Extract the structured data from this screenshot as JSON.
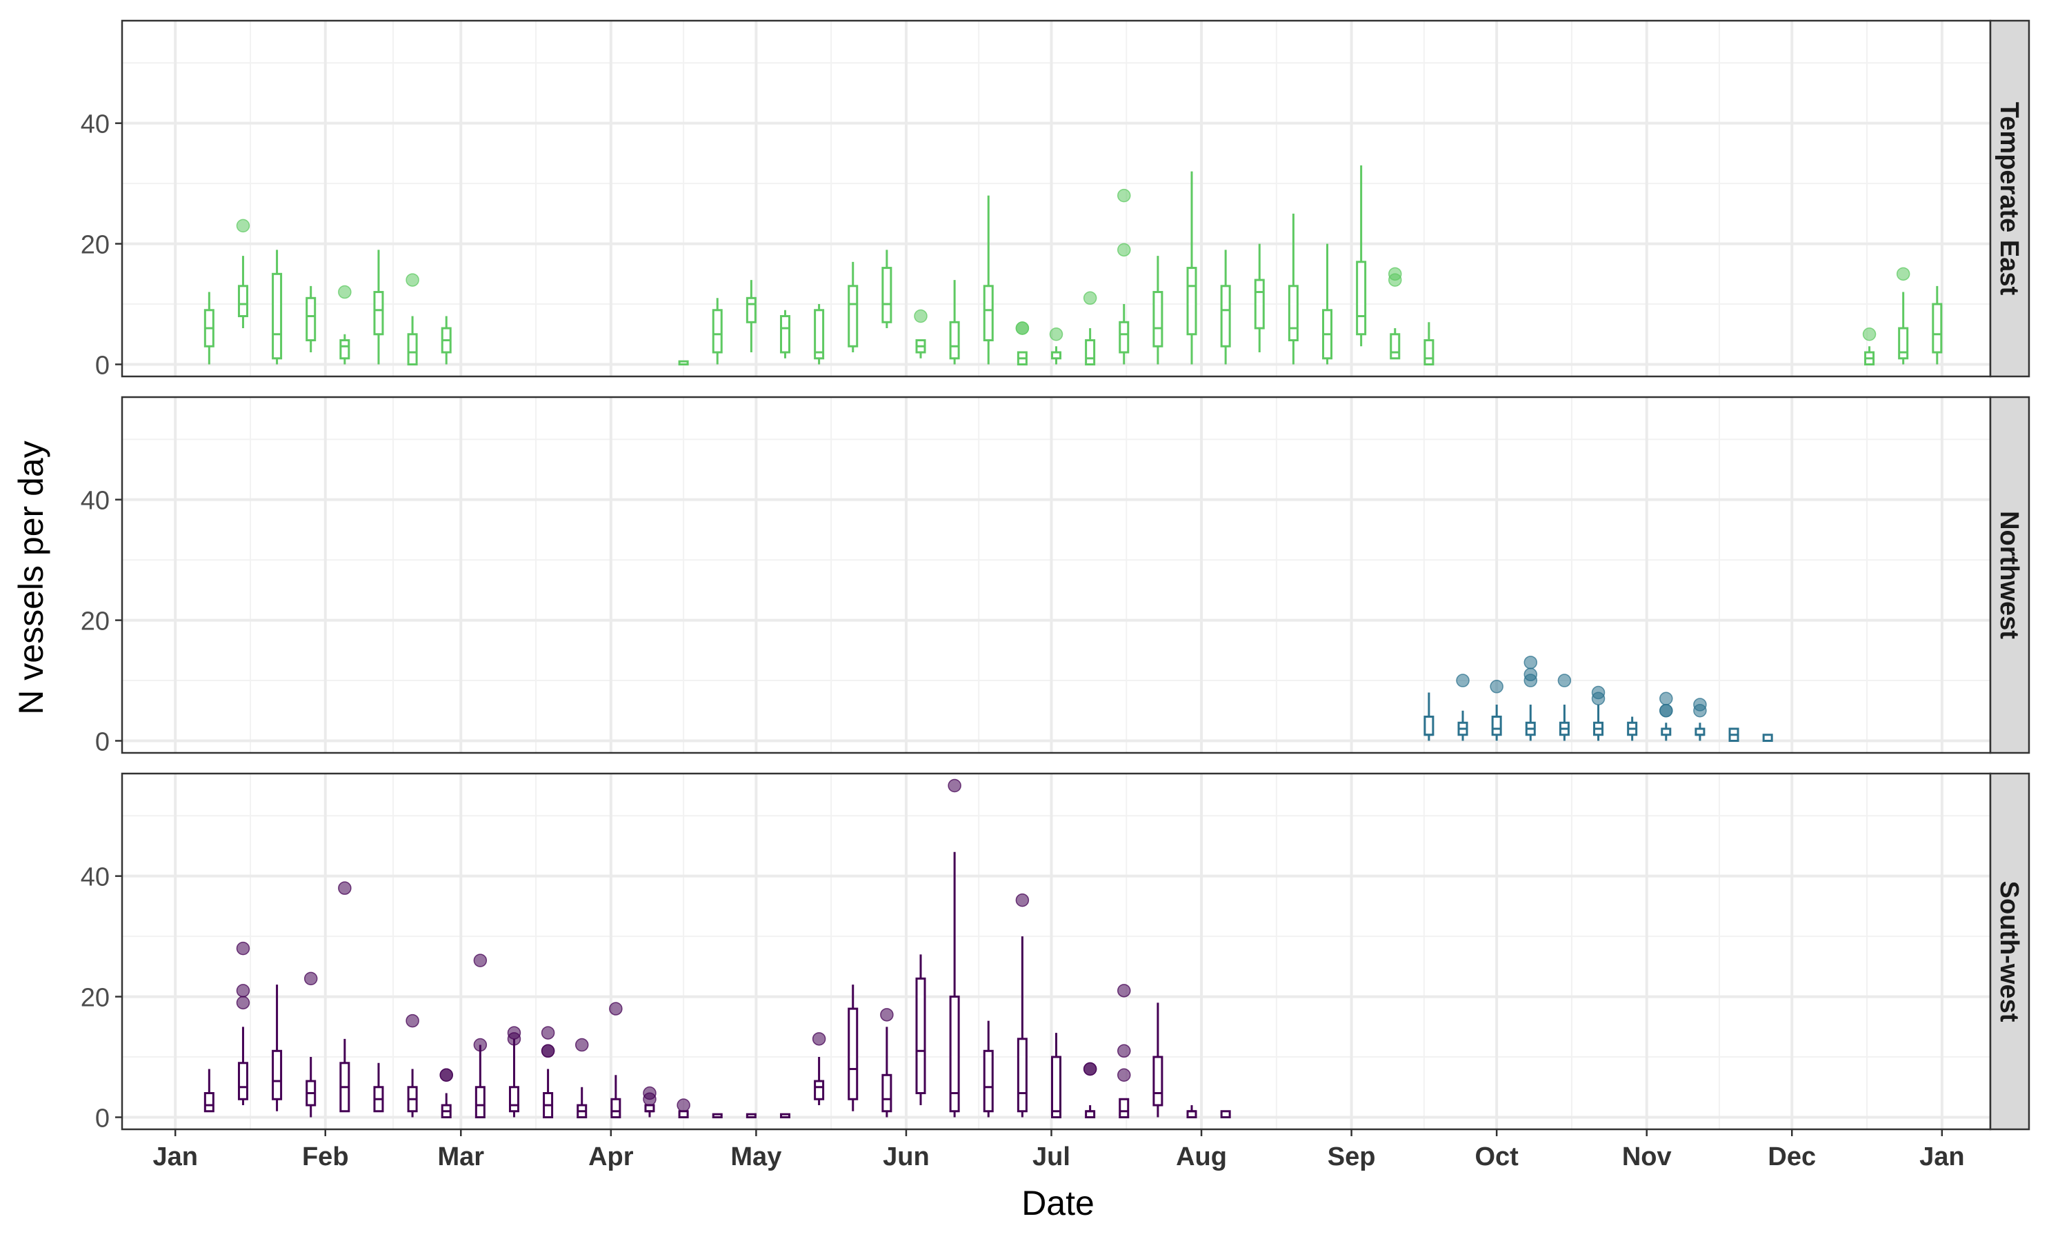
{
  "chart_data": {
    "type": "box",
    "xlabel": "Date",
    "ylabel": "N vessels per day",
    "x_tick_labels": [
      "Jan",
      "Feb",
      "Mar",
      "Apr",
      "May",
      "Jun",
      "Jul",
      "Aug",
      "Sep",
      "Oct",
      "Nov",
      "Dec",
      "Jan"
    ],
    "x_tick_dates": [
      "2023-01-01",
      "2023-02-01",
      "2023-03-01",
      "2023-04-01",
      "2023-05-01",
      "2023-06-01",
      "2023-07-01",
      "2023-08-01",
      "2023-09-01",
      "2023-10-01",
      "2023-11-01",
      "2023-12-01",
      "2024-01-01"
    ],
    "xlim": [
      "2022-12-21",
      "2024-01-11"
    ],
    "ylim": [
      -2,
      57
    ],
    "y_ticks": [
      0,
      20,
      40
    ],
    "grid": true,
    "panels": [
      {
        "name": "Temperate East",
        "color": "#5ec962",
        "boxes": [
          {
            "x": "2023-01-08",
            "min": 0,
            "q1": 3,
            "median": 6,
            "q3": 9,
            "max": 12,
            "outliers": []
          },
          {
            "x": "2023-01-15",
            "min": 6,
            "q1": 8,
            "median": 10,
            "q3": 13,
            "max": 18,
            "outliers": [
              23
            ]
          },
          {
            "x": "2023-01-22",
            "min": 0,
            "q1": 1,
            "median": 5,
            "q3": 15,
            "max": 19,
            "outliers": []
          },
          {
            "x": "2023-01-29",
            "min": 2,
            "q1": 4,
            "median": 8,
            "q3": 11,
            "max": 13,
            "outliers": []
          },
          {
            "x": "2023-02-05",
            "min": 0,
            "q1": 1,
            "median": 3,
            "q3": 4,
            "max": 5,
            "outliers": [
              12
            ]
          },
          {
            "x": "2023-02-12",
            "min": 0,
            "q1": 5,
            "median": 9,
            "q3": 12,
            "max": 19,
            "outliers": []
          },
          {
            "x": "2023-02-19",
            "min": 0,
            "q1": 0,
            "median": 2,
            "q3": 5,
            "max": 8,
            "outliers": [
              14
            ]
          },
          {
            "x": "2023-02-26",
            "min": 0,
            "q1": 2,
            "median": 4,
            "q3": 6,
            "max": 8,
            "outliers": []
          },
          {
            "x": "2023-04-16",
            "min": 0,
            "q1": 0,
            "median": 0,
            "q3": 0.5,
            "max": 0.5,
            "outliers": []
          },
          {
            "x": "2023-04-23",
            "min": 0,
            "q1": 2,
            "median": 5,
            "q3": 9,
            "max": 11,
            "outliers": []
          },
          {
            "x": "2023-04-30",
            "min": 2,
            "q1": 7,
            "median": 10,
            "q3": 11,
            "max": 14,
            "outliers": []
          },
          {
            "x": "2023-05-07",
            "min": 1,
            "q1": 2,
            "median": 6,
            "q3": 8,
            "max": 9,
            "outliers": []
          },
          {
            "x": "2023-05-14",
            "min": 0,
            "q1": 1,
            "median": 2,
            "q3": 9,
            "max": 10,
            "outliers": []
          },
          {
            "x": "2023-05-21",
            "min": 2,
            "q1": 3,
            "median": 10,
            "q3": 13,
            "max": 17,
            "outliers": []
          },
          {
            "x": "2023-05-28",
            "min": 6,
            "q1": 7,
            "median": 10,
            "q3": 16,
            "max": 19,
            "outliers": []
          },
          {
            "x": "2023-06-04",
            "min": 1,
            "q1": 2,
            "median": 3,
            "q3": 4,
            "max": 4,
            "outliers": [
              8
            ]
          },
          {
            "x": "2023-06-11",
            "min": 0,
            "q1": 1,
            "median": 3,
            "q3": 7,
            "max": 14,
            "outliers": []
          },
          {
            "x": "2023-06-18",
            "min": 0,
            "q1": 4,
            "median": 9,
            "q3": 13,
            "max": 28,
            "outliers": []
          },
          {
            "x": "2023-06-25",
            "min": 0,
            "q1": 0,
            "median": 1,
            "q3": 2,
            "max": 2,
            "outliers": [
              6,
              6
            ]
          },
          {
            "x": "2023-07-02",
            "min": 0,
            "q1": 1,
            "median": 2,
            "q3": 2,
            "max": 3,
            "outliers": [
              5
            ]
          },
          {
            "x": "2023-07-09",
            "min": 0,
            "q1": 0,
            "median": 1,
            "q3": 4,
            "max": 6,
            "outliers": [
              11
            ]
          },
          {
            "x": "2023-07-16",
            "min": 0,
            "q1": 2,
            "median": 5,
            "q3": 7,
            "max": 10,
            "outliers": [
              19,
              28
            ]
          },
          {
            "x": "2023-07-23",
            "min": 0,
            "q1": 3,
            "median": 6,
            "q3": 12,
            "max": 18,
            "outliers": []
          },
          {
            "x": "2023-07-30",
            "min": 0,
            "q1": 5,
            "median": 13,
            "q3": 16,
            "max": 32,
            "outliers": []
          },
          {
            "x": "2023-08-06",
            "min": 0,
            "q1": 3,
            "median": 9,
            "q3": 13,
            "max": 19,
            "outliers": []
          },
          {
            "x": "2023-08-13",
            "min": 2,
            "q1": 6,
            "median": 12,
            "q3": 14,
            "max": 20,
            "outliers": []
          },
          {
            "x": "2023-08-20",
            "min": 0,
            "q1": 4,
            "median": 6,
            "q3": 13,
            "max": 25,
            "outliers": []
          },
          {
            "x": "2023-08-27",
            "min": 0,
            "q1": 1,
            "median": 5,
            "q3": 9,
            "max": 20,
            "outliers": []
          },
          {
            "x": "2023-09-03",
            "min": 3,
            "q1": 5,
            "median": 8,
            "q3": 17,
            "max": 33,
            "outliers": []
          },
          {
            "x": "2023-09-10",
            "min": 1,
            "q1": 1,
            "median": 2,
            "q3": 5,
            "max": 6,
            "outliers": [
              14,
              15
            ]
          },
          {
            "x": "2023-09-17",
            "min": 0,
            "q1": 0,
            "median": 1,
            "q3": 4,
            "max": 7,
            "outliers": []
          },
          {
            "x": "2023-12-17",
            "min": 0,
            "q1": 0,
            "median": 1,
            "q3": 2,
            "max": 3,
            "outliers": [
              5
            ]
          },
          {
            "x": "2023-12-24",
            "min": 0,
            "q1": 1,
            "median": 2,
            "q3": 6,
            "max": 12,
            "outliers": [
              15
            ]
          },
          {
            "x": "2023-12-31",
            "min": 0,
            "q1": 2,
            "median": 5,
            "q3": 10,
            "max": 13,
            "outliers": []
          }
        ]
      },
      {
        "name": "Northwest",
        "color": "#2c728e",
        "boxes": [
          {
            "x": "2023-09-17",
            "min": 0,
            "q1": 1,
            "median": 1,
            "q3": 4,
            "max": 8,
            "outliers": []
          },
          {
            "x": "2023-09-24",
            "min": 0,
            "q1": 1,
            "median": 2,
            "q3": 3,
            "max": 5,
            "outliers": [
              10
            ]
          },
          {
            "x": "2023-10-01",
            "min": 0,
            "q1": 1,
            "median": 2,
            "q3": 4,
            "max": 6,
            "outliers": [
              9
            ]
          },
          {
            "x": "2023-10-08",
            "min": 0,
            "q1": 1,
            "median": 2,
            "q3": 3,
            "max": 6,
            "outliers": [
              10,
              11,
              13
            ]
          },
          {
            "x": "2023-10-15",
            "min": 0,
            "q1": 1,
            "median": 2,
            "q3": 3,
            "max": 6,
            "outliers": [
              10
            ]
          },
          {
            "x": "2023-10-22",
            "min": 0,
            "q1": 1,
            "median": 2,
            "q3": 3,
            "max": 6,
            "outliers": [
              7,
              8
            ]
          },
          {
            "x": "2023-10-29",
            "min": 0,
            "q1": 1,
            "median": 2,
            "q3": 3,
            "max": 4,
            "outliers": []
          },
          {
            "x": "2023-11-05",
            "min": 0,
            "q1": 1,
            "median": 2,
            "q3": 2,
            "max": 3,
            "outliers": [
              5,
              5,
              7
            ]
          },
          {
            "x": "2023-11-12",
            "min": 0,
            "q1": 1,
            "median": 1,
            "q3": 2,
            "max": 3,
            "outliers": [
              5,
              6
            ]
          },
          {
            "x": "2023-11-19",
            "min": 0,
            "q1": 0,
            "median": 1,
            "q3": 2,
            "max": 2,
            "outliers": []
          },
          {
            "x": "2023-11-26",
            "min": 0,
            "q1": 0,
            "median": 0,
            "q3": 1,
            "max": 1,
            "outliers": []
          }
        ]
      },
      {
        "name": "South-west",
        "color": "#440154",
        "boxes": [
          {
            "x": "2023-01-08",
            "min": 1,
            "q1": 1,
            "median": 2,
            "q3": 4,
            "max": 8,
            "outliers": []
          },
          {
            "x": "2023-01-15",
            "min": 2,
            "q1": 3,
            "median": 5,
            "q3": 9,
            "max": 15,
            "outliers": [
              19,
              21,
              28
            ]
          },
          {
            "x": "2023-01-22",
            "min": 1,
            "q1": 3,
            "median": 6,
            "q3": 11,
            "max": 22,
            "outliers": []
          },
          {
            "x": "2023-01-29",
            "min": 0,
            "q1": 2,
            "median": 4,
            "q3": 6,
            "max": 10,
            "outliers": [
              23
            ]
          },
          {
            "x": "2023-02-05",
            "min": 1,
            "q1": 1,
            "median": 5,
            "q3": 9,
            "max": 13,
            "outliers": [
              38
            ]
          },
          {
            "x": "2023-02-12",
            "min": 1,
            "q1": 1,
            "median": 3,
            "q3": 5,
            "max": 9,
            "outliers": []
          },
          {
            "x": "2023-02-19",
            "min": 0,
            "q1": 1,
            "median": 3,
            "q3": 5,
            "max": 8,
            "outliers": [
              16
            ]
          },
          {
            "x": "2023-02-26",
            "min": 0,
            "q1": 0,
            "median": 1,
            "q3": 2,
            "max": 4,
            "outliers": [
              7,
              7
            ]
          },
          {
            "x": "2023-03-05",
            "min": 0,
            "q1": 0,
            "median": 2,
            "q3": 5,
            "max": 12,
            "outliers": [
              12,
              26
            ]
          },
          {
            "x": "2023-03-12",
            "min": 0,
            "q1": 1,
            "median": 2,
            "q3": 5,
            "max": 13,
            "outliers": [
              13,
              14
            ]
          },
          {
            "x": "2023-03-19",
            "min": 0,
            "q1": 0,
            "median": 2,
            "q3": 4,
            "max": 8,
            "outliers": [
              11,
              11,
              14
            ]
          },
          {
            "x": "2023-03-26",
            "min": 0,
            "q1": 0,
            "median": 1,
            "q3": 2,
            "max": 5,
            "outliers": [
              12
            ]
          },
          {
            "x": "2023-04-02",
            "min": 0,
            "q1": 0,
            "median": 1,
            "q3": 3,
            "max": 7,
            "outliers": [
              18
            ]
          },
          {
            "x": "2023-04-09",
            "min": 0,
            "q1": 1,
            "median": 1,
            "q3": 2,
            "max": 2,
            "outliers": [
              3,
              4
            ]
          },
          {
            "x": "2023-04-16",
            "min": 0,
            "q1": 0,
            "median": 0,
            "q3": 1,
            "max": 1,
            "outliers": [
              2
            ]
          },
          {
            "x": "2023-04-23",
            "min": 0,
            "q1": 0,
            "median": 0,
            "q3": 0.5,
            "max": 0.5,
            "outliers": []
          },
          {
            "x": "2023-04-30",
            "min": 0,
            "q1": 0,
            "median": 0,
            "q3": 0.5,
            "max": 0.5,
            "outliers": []
          },
          {
            "x": "2023-05-07",
            "min": 0,
            "q1": 0,
            "median": 0,
            "q3": 0.5,
            "max": 0.5,
            "outliers": []
          },
          {
            "x": "2023-05-14",
            "min": 2,
            "q1": 3,
            "median": 5,
            "q3": 6,
            "max": 10,
            "outliers": [
              13
            ]
          },
          {
            "x": "2023-05-21",
            "min": 1,
            "q1": 3,
            "median": 8,
            "q3": 18,
            "max": 22,
            "outliers": []
          },
          {
            "x": "2023-05-28",
            "min": 0,
            "q1": 1,
            "median": 3,
            "q3": 7,
            "max": 15,
            "outliers": [
              17
            ]
          },
          {
            "x": "2023-06-04",
            "min": 2,
            "q1": 4,
            "median": 11,
            "q3": 23,
            "max": 27,
            "outliers": []
          },
          {
            "x": "2023-06-11",
            "min": 0,
            "q1": 1,
            "median": 4,
            "q3": 20,
            "max": 44,
            "outliers": [
              55
            ]
          },
          {
            "x": "2023-06-18",
            "min": 0,
            "q1": 1,
            "median": 5,
            "q3": 11,
            "max": 16,
            "outliers": []
          },
          {
            "x": "2023-06-25",
            "min": 0,
            "q1": 1,
            "median": 4,
            "q3": 13,
            "max": 30,
            "outliers": [
              36
            ]
          },
          {
            "x": "2023-07-02",
            "min": 0,
            "q1": 0,
            "median": 1,
            "q3": 10,
            "max": 14,
            "outliers": []
          },
          {
            "x": "2023-07-09",
            "min": 0,
            "q1": 0,
            "median": 1,
            "q3": 1,
            "max": 2,
            "outliers": [
              8,
              8
            ]
          },
          {
            "x": "2023-07-16",
            "min": 0,
            "q1": 0,
            "median": 1,
            "q3": 3,
            "max": 3,
            "outliers": [
              7,
              11,
              21
            ]
          },
          {
            "x": "2023-07-23",
            "min": 0,
            "q1": 2,
            "median": 4,
            "q3": 10,
            "max": 19,
            "outliers": []
          },
          {
            "x": "2023-07-30",
            "min": 0,
            "q1": 0,
            "median": 1,
            "q3": 1,
            "max": 2,
            "outliers": []
          },
          {
            "x": "2023-08-06",
            "min": 0,
            "q1": 0,
            "median": 0,
            "q3": 1,
            "max": 1,
            "outliers": []
          }
        ]
      }
    ]
  }
}
